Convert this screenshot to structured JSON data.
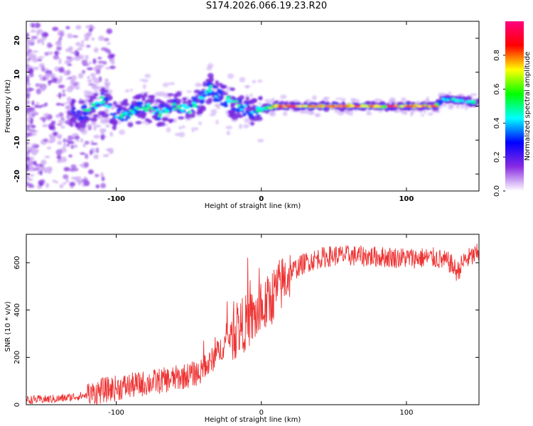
{
  "title": "S174.2026.066.19.23.R20",
  "chart_data": [
    {
      "type": "heatmap",
      "xlabel": "Height of straight line (km)",
      "ylabel": "Frequency (Hz)",
      "xlim": [
        -162,
        150
      ],
      "ylim": [
        -25,
        25
      ],
      "xticks": [
        -100,
        0,
        100
      ],
      "yticks": [
        -20,
        -10,
        0,
        10,
        20
      ],
      "colorbar": {
        "label": "Normalized spectral amplitude",
        "range": [
          0,
          1
        ],
        "ticks": [
          "0.0",
          "0.2",
          "0.4",
          "0.6",
          "0.8"
        ],
        "colors": [
          "#ffffff",
          "#8a2be2",
          "#0000ff",
          "#00ffff",
          "#00ff00",
          "#ffff00",
          "#ff0000",
          "#ff0080"
        ]
      },
      "ridge": {
        "x": [
          -130,
          -120,
          -110,
          -100,
          -90,
          -80,
          -70,
          -60,
          -50,
          -40,
          -35,
          -30,
          -20,
          -10,
          -5,
          0,
          10,
          20,
          40,
          60,
          80,
          100,
          120,
          125,
          130,
          150
        ],
        "y": [
          -2,
          -2,
          2,
          -3,
          -2,
          0,
          -2,
          0,
          -1,
          3,
          5,
          3,
          1,
          -1,
          -2,
          -1,
          0,
          0,
          0,
          0,
          0,
          0,
          0,
          2,
          2,
          1
        ]
      }
    },
    {
      "type": "line",
      "xlabel": "Height of straight line (km)",
      "ylabel": "SNR (10 * v/v)",
      "xlim": [
        -162,
        150
      ],
      "ylim": [
        0,
        720
      ],
      "xticks": [
        -100,
        0,
        100
      ],
      "yticks": [
        0,
        200,
        400,
        600
      ],
      "color": "#ee3333",
      "series": {
        "x": [
          -162,
          -140,
          -120,
          -110,
          -100,
          -80,
          -60,
          -40,
          -30,
          -20,
          -10,
          0,
          10,
          20,
          30,
          40,
          50,
          60,
          80,
          100,
          120,
          130,
          135,
          140,
          150
        ],
        "y": [
          20,
          25,
          40,
          60,
          70,
          90,
          110,
          140,
          220,
          300,
          350,
          390,
          480,
          560,
          600,
          620,
          630,
          630,
          625,
          620,
          620,
          600,
          560,
          610,
          640
        ]
      }
    }
  ]
}
